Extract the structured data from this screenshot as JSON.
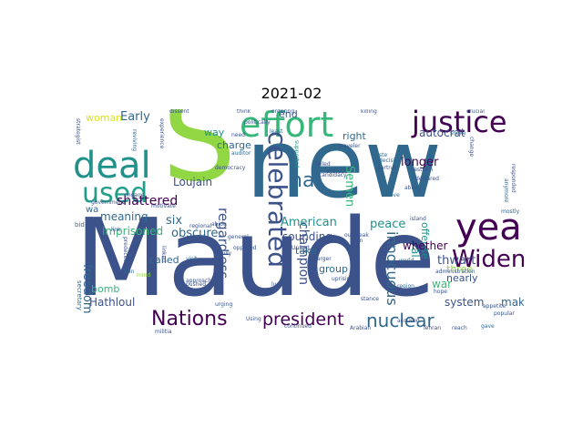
{
  "title": "2021-02",
  "palette": {
    "dark_purple": "#440154",
    "indigo": "#3b528b",
    "blue": "#31688e",
    "teal": "#21918c",
    "sea_green": "#1f9e89",
    "green": "#35b779",
    "lime": "#90d743",
    "yellow": "#d8e219"
  },
  "words": {
    "s": "S",
    "new": "new",
    "maude": "Maude",
    "effort": "effort",
    "justice": "justice",
    "deal": "deal",
    "used": "used",
    "year": "year",
    "widen": "Widen",
    "nations": "Nations",
    "president": "president",
    "nuclear": "nuclear",
    "celebrated": "celebrated",
    "ha": "ha",
    "semen": "Semen",
    "american": "American",
    "shattered": "shattered",
    "early": "Early",
    "woman": "woman",
    "meaning": "meaning",
    "loujain": "Loujain",
    "imprisoned": "imprisoned",
    "freedom": "freedom",
    "bomb": "bomb",
    "hathloul": "Hathloul",
    "six": "six",
    "obscure": "obscure",
    "regardless": "regardless",
    "way": "way",
    "charge": "charge",
    "end": "end",
    "longer": "longer",
    "right": "right",
    "autocrat": "autocrat",
    "peace": "peace",
    "whether": "whether",
    "thwart": "thwart",
    "nearly": "nearly",
    "make": "make",
    "system": "system",
    "three": "three",
    "al": "al",
    "offense": "offense",
    "war": "war",
    "innocuous": "innocuous",
    "sounding": "sounding",
    "take": "take",
    "group": "group",
    "champion": "champion",
    "called": "called",
    "wa": "wa",
    "mind": "mind",
    "ran": "Ran",
    "secretary": "secretary",
    "government": "government",
    "engage": "engage",
    "bid": "bid",
    "motivate": "motivate",
    "democracy": "democracy",
    "auditor": "auditor",
    "need": "need",
    "politically": "politically",
    "least": "least",
    "supported": "supported",
    "failed": "failed",
    "candidacy": "candidacy",
    "outbreak": "outbreak",
    "traveler": "traveler",
    "taste": "taste",
    "decision": "decision",
    "shake": "shake",
    "move": "move",
    "island": "island",
    "world": "world",
    "administration": "administration",
    "region": "region",
    "hope": "hope",
    "tehran": "Tehran",
    "reach": "reach",
    "gave": "gave",
    "popular": "popular",
    "appetite": "appetite",
    "restrain": "restrain",
    "declared": "declared",
    "mostly": "mostly",
    "responded": "responded",
    "anymore": "anymore",
    "change": "change",
    "reviving": "reviving",
    "experience": "experience",
    "approach": "approach",
    "regional": "regional",
    "general": "general",
    "visit": "visit",
    "pushed": "pushed",
    "luxury": "luxury",
    "larger": "larger",
    "uprising": "uprising",
    "urging": "urging",
    "using": "Using",
    "united": "United",
    "continued": "continued",
    "militia": "militia",
    "link": "link",
    "hasn": "hasn",
    "linked": "linked",
    "without": "without",
    "abide": "abide",
    "lilly": "lilly",
    "ability": "ability",
    "partner": "partner",
    "arabian": "Arabian",
    "accused": "accused",
    "predecessor": "predecessor",
    "stance": "stance",
    "opposed": "opposed",
    "strategist": "strategist",
    "think": "think",
    "dissent": "dissent",
    "ordering": "ordering",
    "killing": "killing",
    "crucial": "crucial"
  }
}
